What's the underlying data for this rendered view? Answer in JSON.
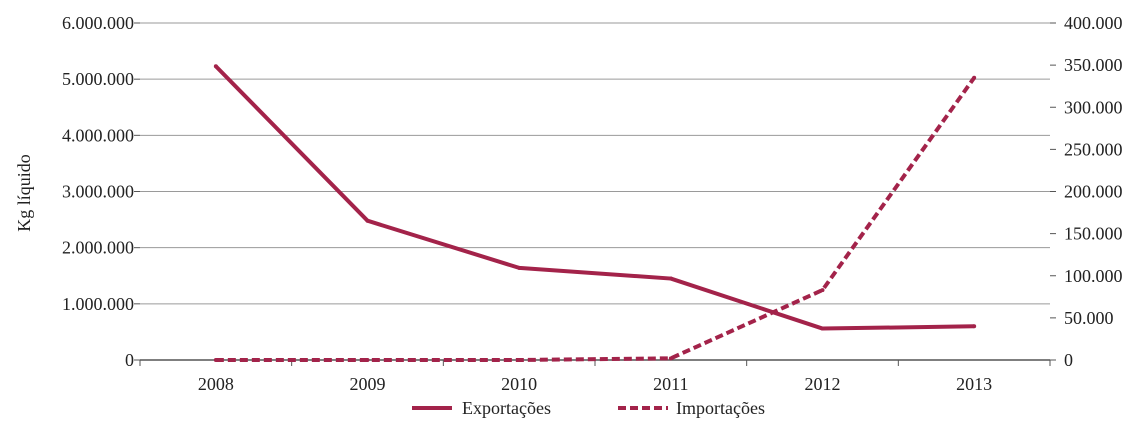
{
  "chart_data": {
    "type": "line",
    "title": "",
    "xlabel": "",
    "ylabel": "Kg líquido",
    "y2label": "",
    "categories": [
      "2008",
      "2009",
      "2010",
      "2011",
      "2012",
      "2013"
    ],
    "ylim": [
      0,
      6000000
    ],
    "y2lim": [
      0,
      400000
    ],
    "yticks": [
      "0",
      "1.000.000",
      "2.000.000",
      "3.000.000",
      "4.000.000",
      "5.000.000",
      "6.000.000"
    ],
    "y2ticks": [
      "0",
      "50.000",
      "100.000",
      "150.000",
      "200.000",
      "250.000",
      "300.000",
      "350.000",
      "400.000"
    ],
    "grid": "horizontal",
    "legend_position": "bottom",
    "series": [
      {
        "name": "Exportações",
        "axis": "left",
        "style": "solid",
        "color": "#a3234a",
        "values": [
          5230000,
          2480000,
          1640000,
          1450000,
          560000,
          600000
        ]
      },
      {
        "name": "Importações",
        "axis": "right",
        "style": "dashed",
        "color": "#a3234a",
        "values": [
          0,
          0,
          0,
          2000,
          83000,
          335000
        ]
      }
    ]
  }
}
